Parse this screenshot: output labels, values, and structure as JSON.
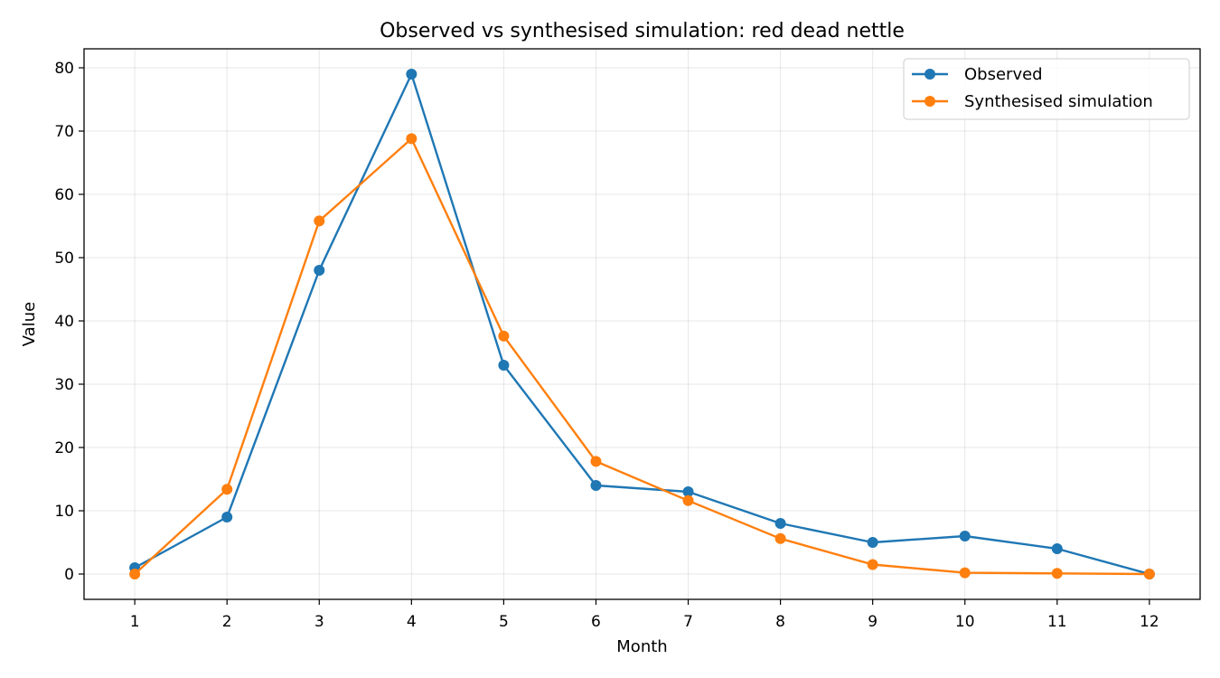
{
  "chart_data": {
    "type": "line",
    "title": "Observed vs synthesised simulation: red dead nettle",
    "xlabel": "Month",
    "ylabel": "Value",
    "x": [
      1,
      2,
      3,
      4,
      5,
      6,
      7,
      8,
      9,
      10,
      11,
      12
    ],
    "xticks": [
      "1",
      "2",
      "3",
      "4",
      "5",
      "6",
      "7",
      "8",
      "9",
      "10",
      "11",
      "12"
    ],
    "yticks": [
      "0",
      "10",
      "20",
      "30",
      "40",
      "50",
      "60",
      "70",
      "80"
    ],
    "xlim": [
      0.45,
      12.55
    ],
    "ylim": [
      -4,
      83
    ],
    "grid": true,
    "legend_position": "top-right",
    "series": [
      {
        "name": "Observed",
        "color": "#1f77b4",
        "values": [
          1,
          9,
          48,
          79,
          33,
          14,
          13,
          8,
          5,
          6,
          4,
          0
        ]
      },
      {
        "name": "Synthesised simulation",
        "color": "#ff7f0e",
        "values": [
          0,
          13.4,
          55.8,
          68.8,
          37.6,
          17.8,
          11.6,
          5.6,
          1.5,
          0.2,
          0.1,
          0
        ]
      }
    ]
  }
}
